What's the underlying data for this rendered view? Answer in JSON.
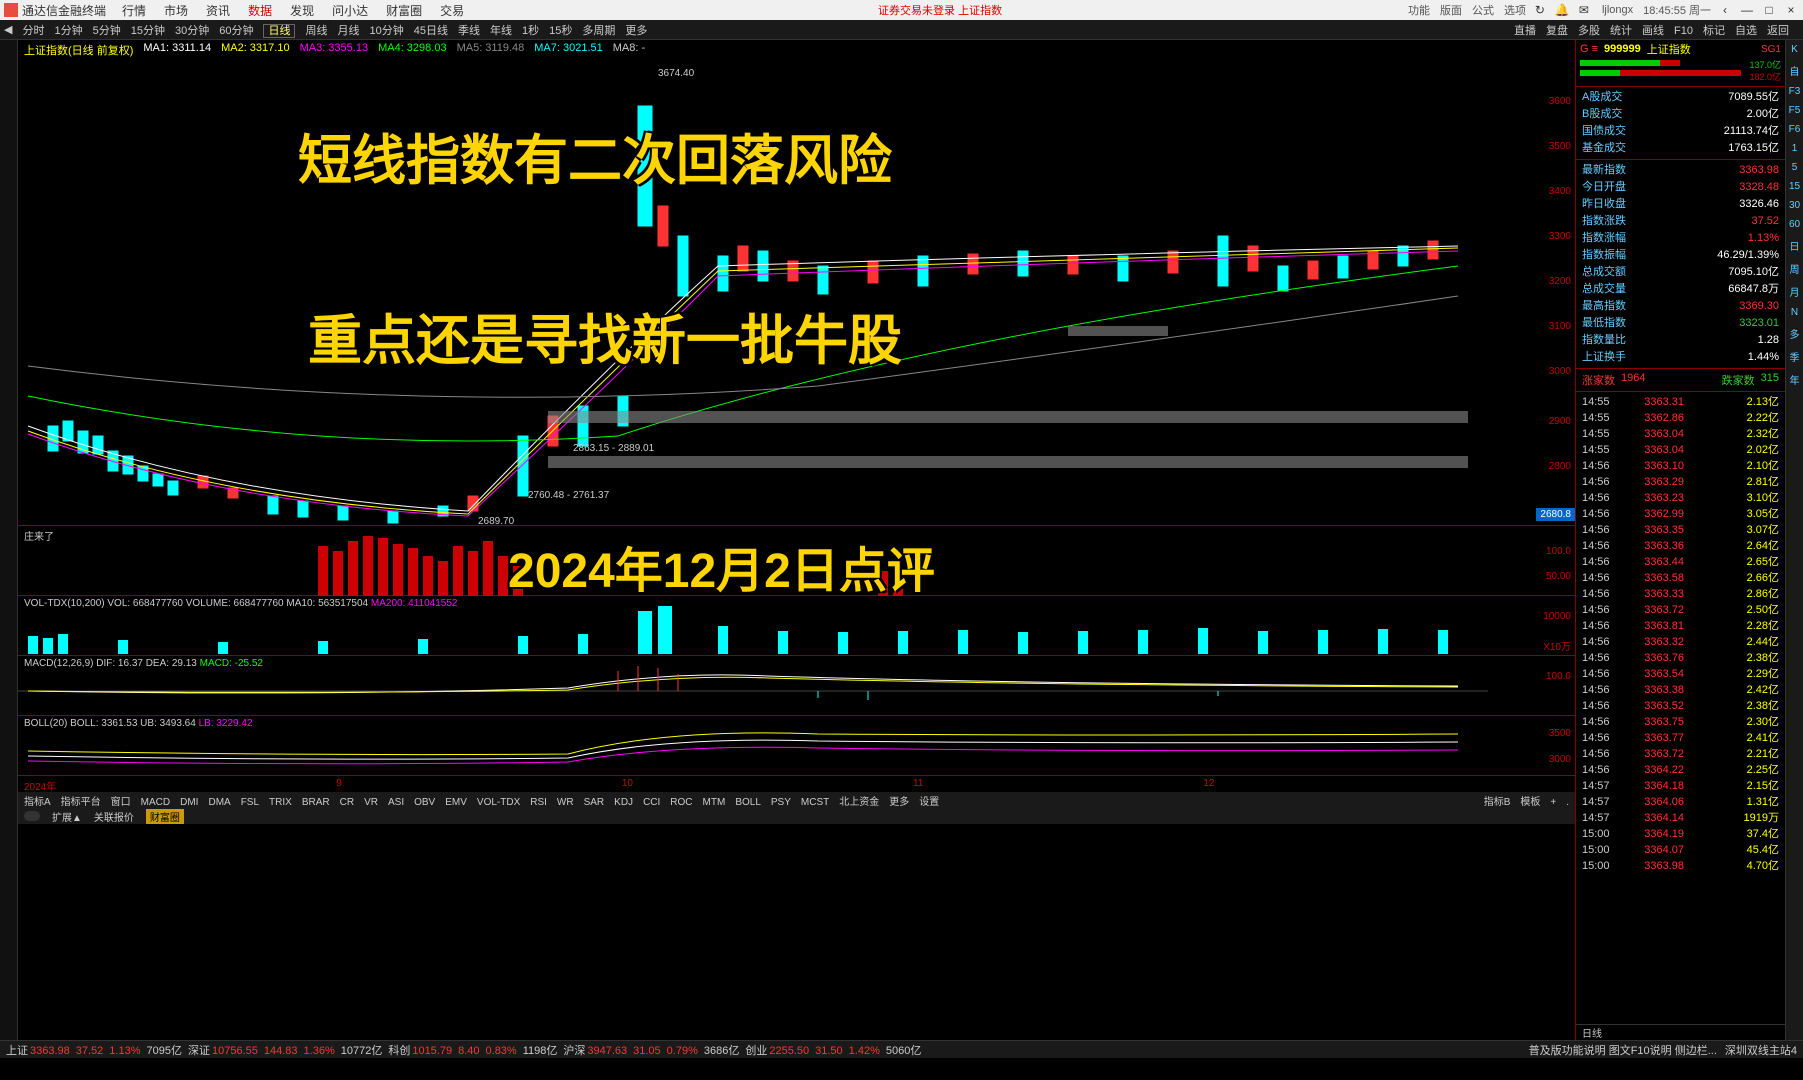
{
  "menubar": {
    "title": "通达信金融终端",
    "items": [
      "行情",
      "市场",
      "资讯",
      "数据",
      "发现",
      "问小达",
      "财富圈",
      "交易"
    ],
    "active_index": 3,
    "center_text": "证券交易未登录  上证指数",
    "right_items": [
      "功能",
      "版面",
      "公式",
      "选项"
    ],
    "username": "ljlongx",
    "time": "18:45:55 周一"
  },
  "toolbar": {
    "items": [
      "分时",
      "1分钟",
      "5分钟",
      "15分钟",
      "30分钟",
      "60分钟",
      "日线",
      "周线",
      "月线",
      "10分钟",
      "45日线",
      "季线",
      "年线",
      "1秒",
      "15秒",
      "多周期",
      "更多"
    ],
    "active_index": 6,
    "right_items": [
      "直播",
      "复盘",
      "多股",
      "统计",
      "画线",
      "F10",
      "标记",
      "自选",
      "返回"
    ]
  },
  "chart": {
    "title": "上证指数(日线 前复权)",
    "ma_labels": [
      "MA1: 3311.14",
      "MA2: 3317.10",
      "MA3: 3355.13",
      "MA4: 3298.03",
      "MA5: 3119.48",
      "MA7: 3021.51",
      "MA8: -"
    ],
    "high_label": "3674.40",
    "low_label": "2689.70",
    "mid_labels": [
      "2863.15 - 2889.01",
      "2760.48 - 2761.37"
    ],
    "price_levels": [
      "3600",
      "3500",
      "3400",
      "3300",
      "3200",
      "3100",
      "3000",
      "2900",
      "2800"
    ],
    "current_price_tag": "2680.8",
    "overlay": {
      "line1": "短线指数有二次回落风险",
      "line2": "重点还是寻找新一批牛股",
      "line3": "2024年12月2日点评",
      "fontsize_main": 54,
      "fontsize_date": 48,
      "color": "#ffd500"
    }
  },
  "sub_panels": {
    "zlr": {
      "label": "庄来了",
      "axis": [
        "100.0",
        "50.00"
      ]
    },
    "vol": {
      "label": "VOL-TDX(10,200)  VOL: 668477760  VOLUME: 668477760  MA10: 563517504",
      "extra": "MA200: 411041552",
      "axis": [
        "10000",
        "X10万"
      ]
    },
    "macd": {
      "label": "MACD(12,26,9)  DIF: 16.37  DEA: 29.13",
      "extra": "MACD: -25.52",
      "axis": [
        "100.0"
      ]
    },
    "boll": {
      "label": "BOLL(20)  BOLL: 3361.53  UB: 3493.64",
      "extra": "LB: 3229.42",
      "axis": [
        "3500",
        "3000"
      ]
    }
  },
  "time_axis": [
    "2024年",
    "9",
    "10",
    "11",
    "12"
  ],
  "indicator_bar": {
    "left": [
      "指标A",
      "指标平台",
      "窗口",
      "MACD",
      "DMI",
      "DMA",
      "FSL",
      "TRIX",
      "BRAR",
      "CR",
      "VR",
      "ASI",
      "OBV",
      "EMV",
      "VOL-TDX",
      "RSI",
      "WR",
      "SAR",
      "KDJ",
      "CCI",
      "ROC",
      "MTM",
      "BOLL",
      "PSY",
      "MCST",
      "北上资金",
      "更多",
      "设置"
    ],
    "right": [
      "指标B",
      "模板",
      "+",
      "."
    ]
  },
  "secondary_bar": [
    "扩展▲",
    "关联报价",
    "财富圈"
  ],
  "status_bar": {
    "items": [
      {
        "label": "上证",
        "value": "3363.98",
        "color": "red"
      },
      {
        "label": "",
        "value": "37.52",
        "color": "red"
      },
      {
        "label": "",
        "value": "1.13%",
        "color": "red"
      },
      {
        "label": "",
        "value": "7095亿",
        "color": "white"
      },
      {
        "label": "深证",
        "value": "10756.55",
        "color": "red"
      },
      {
        "label": "",
        "value": "144.83",
        "color": "red"
      },
      {
        "label": "",
        "value": "1.36%",
        "color": "red"
      },
      {
        "label": "",
        "value": "10772亿",
        "color": "white"
      },
      {
        "label": "科创",
        "value": "1015.79",
        "color": "red"
      },
      {
        "label": "",
        "value": "8.40",
        "color": "red"
      },
      {
        "label": "",
        "value": "0.83%",
        "color": "red"
      },
      {
        "label": "",
        "value": "1198亿",
        "color": "white"
      },
      {
        "label": "沪深",
        "value": "3947.63",
        "color": "red"
      },
      {
        "label": "",
        "value": "31.05",
        "color": "red"
      },
      {
        "label": "",
        "value": "0.79%",
        "color": "red"
      },
      {
        "label": "",
        "value": "3686亿",
        "color": "white"
      },
      {
        "label": "创业",
        "value": "2255.50",
        "color": "red"
      },
      {
        "label": "",
        "value": "31.50",
        "color": "red"
      },
      {
        "label": "",
        "value": "1.42%",
        "color": "red"
      },
      {
        "label": "",
        "value": "5060亿",
        "color": "white"
      }
    ],
    "right_text": "普及版功能说明   图文F10说明   侧边栏...",
    "server": "深圳双线主站4"
  },
  "right_panel": {
    "code": "999999",
    "name": "上证指数",
    "sg": "SG1",
    "bar_vals": [
      "137.0亿",
      "182.0亿"
    ],
    "turnover": [
      {
        "label": "A股成交",
        "value": "7089.55亿",
        "cls": ""
      },
      {
        "label": "B股成交",
        "value": "2.00亿",
        "cls": ""
      },
      {
        "label": "国债成交",
        "value": "21113.74亿",
        "cls": ""
      },
      {
        "label": "基金成交",
        "value": "1763.15亿",
        "cls": ""
      }
    ],
    "stats": [
      {
        "label": "最新指数",
        "value": "3363.98",
        "cls": "red"
      },
      {
        "label": "今日开盘",
        "value": "3328.48",
        "cls": "red"
      },
      {
        "label": "昨日收盘",
        "value": "3326.46",
        "cls": ""
      },
      {
        "label": "指数涨跌",
        "value": "37.52",
        "cls": "red"
      },
      {
        "label": "指数涨幅",
        "value": "1.13%",
        "cls": "red"
      },
      {
        "label": "指数振幅",
        "value": "46.29/1.39%",
        "cls": ""
      },
      {
        "label": "总成交额",
        "value": "7095.10亿",
        "cls": ""
      },
      {
        "label": "总成交量",
        "value": "66847.8万",
        "cls": ""
      },
      {
        "label": "最高指数",
        "value": "3369.30",
        "cls": "red"
      },
      {
        "label": "最低指数",
        "value": "3323.01",
        "cls": "green"
      },
      {
        "label": "指数量比",
        "value": "1.28",
        "cls": ""
      },
      {
        "label": "上证换手",
        "value": "1.44%",
        "cls": ""
      }
    ],
    "adv": {
      "l1": "涨家数",
      "v1": "1964",
      "l2": "跌家数",
      "v2": "315"
    },
    "ticks": [
      {
        "t": "14:55",
        "p": "3363.31",
        "v": "2.13亿"
      },
      {
        "t": "14:55",
        "p": "3362.86",
        "v": "2.22亿"
      },
      {
        "t": "14:55",
        "p": "3363.04",
        "v": "2.32亿"
      },
      {
        "t": "14:55",
        "p": "3363.04",
        "v": "2.02亿"
      },
      {
        "t": "14:56",
        "p": "3363.10",
        "v": "2.10亿"
      },
      {
        "t": "14:56",
        "p": "3363.29",
        "v": "2.81亿"
      },
      {
        "t": "14:56",
        "p": "3363.23",
        "v": "3.10亿"
      },
      {
        "t": "14:56",
        "p": "3362.99",
        "v": "3.05亿"
      },
      {
        "t": "14:56",
        "p": "3363.35",
        "v": "3.07亿"
      },
      {
        "t": "14:56",
        "p": "3363.36",
        "v": "2.64亿"
      },
      {
        "t": "14:56",
        "p": "3363.44",
        "v": "2.65亿"
      },
      {
        "t": "14:56",
        "p": "3363.58",
        "v": "2.66亿"
      },
      {
        "t": "14:56",
        "p": "3363.33",
        "v": "2.86亿"
      },
      {
        "t": "14:56",
        "p": "3363.72",
        "v": "2.50亿"
      },
      {
        "t": "14:56",
        "p": "3363.81",
        "v": "2.28亿"
      },
      {
        "t": "14:56",
        "p": "3363.32",
        "v": "2.44亿"
      },
      {
        "t": "14:56",
        "p": "3363.76",
        "v": "2.38亿"
      },
      {
        "t": "14:56",
        "p": "3363.54",
        "v": "2.29亿"
      },
      {
        "t": "14:56",
        "p": "3363.38",
        "v": "2.42亿"
      },
      {
        "t": "14:56",
        "p": "3363.52",
        "v": "2.38亿"
      },
      {
        "t": "14:56",
        "p": "3363.75",
        "v": "2.30亿"
      },
      {
        "t": "14:56",
        "p": "3363.77",
        "v": "2.41亿"
      },
      {
        "t": "14:56",
        "p": "3363.72",
        "v": "2.21亿"
      },
      {
        "t": "14:56",
        "p": "3364.22",
        "v": "2.25亿"
      },
      {
        "t": "14:57",
        "p": "3364.18",
        "v": "2.15亿"
      },
      {
        "t": "14:57",
        "p": "3364.06",
        "v": "1.31亿"
      },
      {
        "t": "14:57",
        "p": "3364.14",
        "v": "1919万"
      },
      {
        "t": "15:00",
        "p": "3364.19",
        "v": "37.4亿"
      },
      {
        "t": "15:00",
        "p": "3364.07",
        "v": "45.4亿"
      },
      {
        "t": "15:00",
        "p": "3363.98",
        "v": "4.70亿"
      }
    ],
    "footer": [
      "日线"
    ]
  },
  "far_right": [
    "K",
    "自",
    "F3",
    "F5",
    "F6",
    "1",
    "5",
    "15",
    "30",
    "60",
    "日",
    "周",
    "月",
    "N",
    "多",
    "季",
    "年"
  ],
  "colors": {
    "bg": "#000000",
    "red": "#ff3333",
    "green": "#33cc33",
    "cyan": "#00ffff",
    "yellow": "#ffff00",
    "border": "#880000"
  }
}
